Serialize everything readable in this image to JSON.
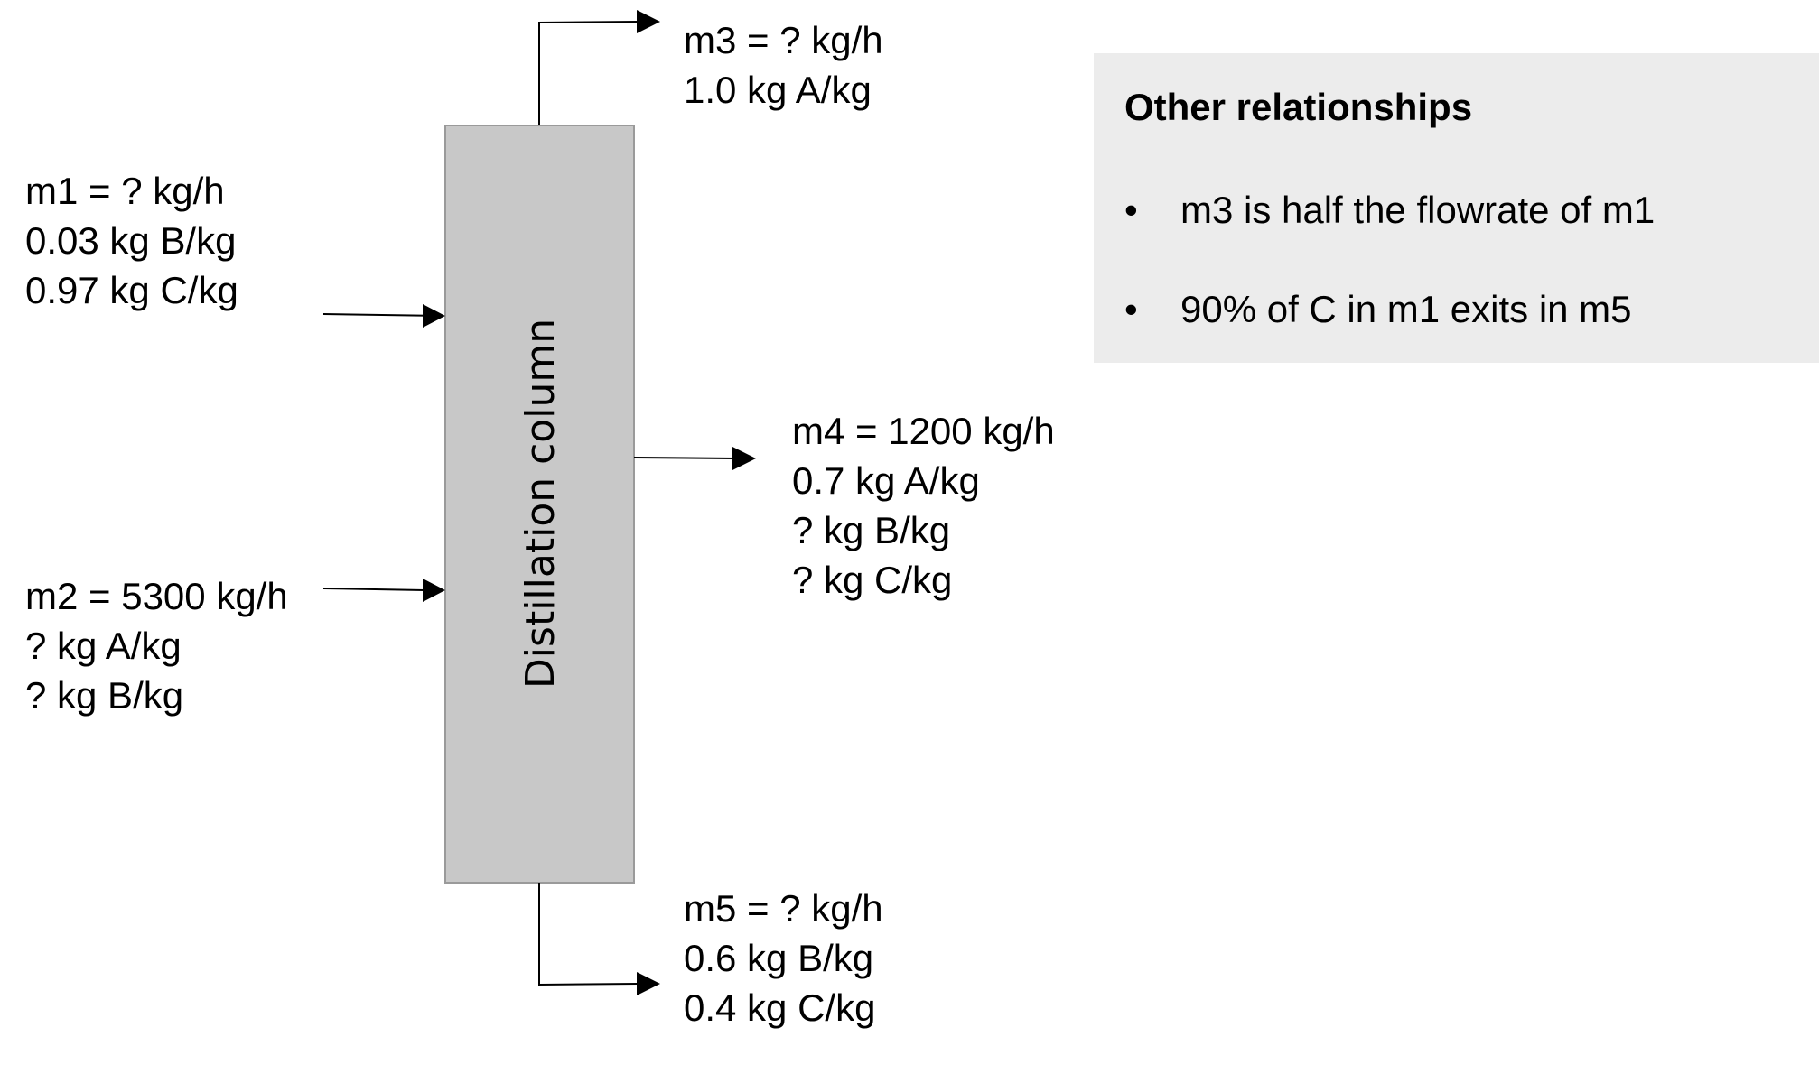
{
  "column": {
    "label": "Distillation column",
    "fill": "#c8c8c8",
    "stroke": "#9a9a9a"
  },
  "streams": {
    "m1": {
      "lines": [
        "m1 = ? kg/h",
        "0.03 kg B/kg",
        "0.97 kg C/kg"
      ]
    },
    "m2": {
      "lines": [
        "m2 = 5300 kg/h",
        "? kg A/kg",
        "? kg B/kg"
      ]
    },
    "m3": {
      "lines": [
        "m3 = ? kg/h",
        "1.0 kg A/kg"
      ]
    },
    "m4": {
      "lines": [
        "m4 = 1200  kg/h",
        "0.7 kg A/kg",
        "? kg B/kg",
        "? kg C/kg"
      ]
    },
    "m5": {
      "lines": [
        "m5 = ? kg/h",
        "0.6 kg B/kg",
        "0.4 kg C/kg"
      ]
    }
  },
  "relationships": {
    "title": "Other relationships",
    "bullet": "•",
    "items": [
      "m3 is half the flowrate of m1",
      "90% of C in m1 exits in m5"
    ],
    "background": "#ececec"
  }
}
